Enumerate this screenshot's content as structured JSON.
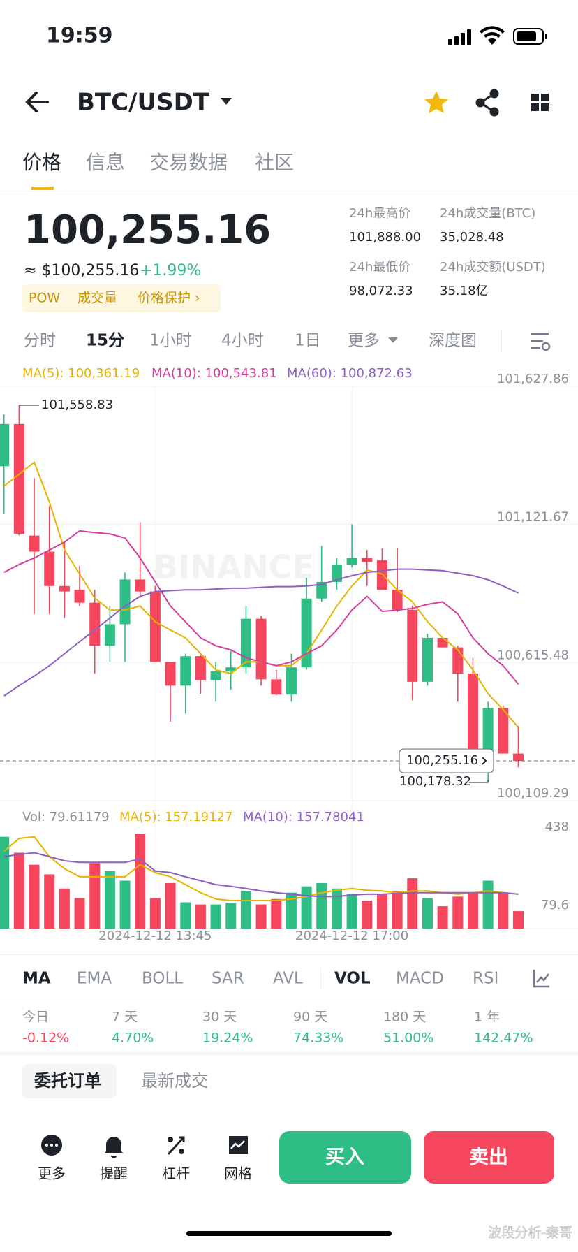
{
  "status": {
    "time": "19:59"
  },
  "header": {
    "pair": "BTC/USDT"
  },
  "tabs": [
    "价格",
    "信息",
    "交易数据",
    "社区"
  ],
  "price": {
    "last": "100,255.16",
    "usd": "≈ $100,255.16",
    "change": "+1.99%",
    "tags": [
      "POW",
      "成交量",
      "价格保护 ›"
    ]
  },
  "stats": [
    {
      "label": "24h最高价",
      "value": "101,888.00"
    },
    {
      "label": "24h成交量(BTC)",
      "value": "35,028.48"
    },
    {
      "label": "24h最低价",
      "value": "98,072.33"
    },
    {
      "label": "24h成交额(USDT)",
      "value": "35.18亿"
    }
  ],
  "timeframes": [
    "分时",
    "15分",
    "1小时",
    "4小时",
    "1日",
    "更多",
    "深度图"
  ],
  "chart_data": {
    "type": "candlestick",
    "watermark": "BINANCE",
    "categories": [
      null,
      null,
      null,
      null,
      null,
      null,
      null,
      null,
      null,
      null,
      "2024-12-12 13:45",
      null,
      null,
      null,
      null,
      null,
      null,
      null,
      null,
      null,
      null,
      null,
      null,
      "2024-12-12 17:00",
      null,
      null,
      null,
      null,
      null,
      null,
      null,
      null,
      null,
      null,
      null
    ],
    "up_color": "#2ebd85",
    "down_color": "#f6465d",
    "open": [
      101335,
      101490,
      101081,
      101022,
      100896,
      100882,
      100835,
      100677,
      100756,
      100920,
      100876,
      100618,
      100531,
      100639,
      100551,
      100583,
      100598,
      100776,
      100554,
      100498,
      100598,
      100850,
      100911,
      100975,
      100999,
      100990,
      100882,
      100809,
      100545,
      100706,
      100671,
      100575,
      100282,
      100449,
      100282
    ],
    "high": [
      101525,
      101558.83,
      101291,
      101189,
      101057,
      100970,
      100882,
      100823,
      100946,
      101130,
      100896,
      100618,
      100648,
      100648,
      100618,
      100662,
      100823,
      100788,
      100589,
      100648,
      100926,
      101043,
      100999,
      101122,
      101028,
      101034,
      101034,
      100823,
      100721,
      100706,
      100677,
      100633,
      100472,
      100458,
      100384
    ],
    "low": [
      101160,
      101081,
      100794,
      100794,
      100779,
      100823,
      100575,
      100618,
      100618,
      100853,
      100618,
      100399,
      100428,
      100501,
      100472,
      100516,
      100575,
      100531,
      100496,
      100472,
      100589,
      100838,
      100882,
      100964,
      100896,
      100882,
      100800,
      100478,
      100531,
      100671,
      100472,
      100273,
      100178.32,
      100282,
      100232
    ],
    "close": [
      101490,
      101087,
      101022,
      100896,
      100876,
      100835,
      100677,
      100756,
      100920,
      100876,
      100618,
      100531,
      100639,
      100551,
      100583,
      100598,
      100776,
      100554,
      100498,
      100598,
      100850,
      100911,
      100975,
      100999,
      100984,
      100882,
      100809,
      100545,
      100706,
      100671,
      100575,
      100282,
      100449,
      100282,
      100255.16
    ],
    "series": [
      {
        "name": "MA(5): 100,361.19",
        "color": "#e8b400",
        "values": [
          101262,
          101306,
          101350,
          101204,
          101028,
          100940,
          100852,
          100808,
          100808,
          100823,
          100765,
          100735,
          100706,
          100648,
          100589,
          100575,
          100618,
          100618,
          100604,
          100604,
          100648,
          100735,
          100823,
          100896,
          100955,
          100940,
          100882,
          100838,
          100765,
          100706,
          100662,
          100589,
          100501,
          100443,
          100378
        ]
      },
      {
        "name": "MA(10): 100,543.81",
        "color": "#d63d9e",
        "values": [
          100946,
          100975,
          100999,
          101028,
          101057,
          101098,
          101092,
          101087,
          101072,
          100999,
          100911,
          100823,
          100765,
          100706,
          100677,
          100662,
          100633,
          100618,
          100604,
          100618,
          100648,
          100677,
          100735,
          100808,
          100858,
          100803,
          100808,
          100814,
          100829,
          100838,
          100794,
          100706,
          100648,
          100604,
          100536
        ]
      },
      {
        "name": "MA(60): 100,872.63",
        "color": "#8e5fc2",
        "values": [
          100493,
          100531,
          100566,
          100604,
          100648,
          100692,
          100735,
          100779,
          100823,
          100858,
          100876,
          100879,
          100882,
          100882,
          100885,
          100888,
          100888,
          100891,
          100894,
          100894,
          100896,
          100902,
          100919,
          100934,
          100946,
          100952,
          100958,
          100958,
          100955,
          100952,
          100943,
          100934,
          100919,
          100896,
          100870
        ]
      }
    ],
    "ylim": [
      100109.29,
      101627.86
    ],
    "yticks": [
      {
        "value": 101627.86,
        "label": "101,627.86"
      },
      {
        "value": 101121.67,
        "label": "101,121.67"
      },
      {
        "value": 100615.48,
        "label": "100,615.48"
      },
      {
        "value": 100109.29,
        "label": "100,109.29"
      }
    ],
    "annotations": {
      "high": "101,558.83",
      "low": "100,178.32",
      "last": "100,255.16"
    },
    "volume": {
      "label": "Vol: 79.61179",
      "values": [
        420,
        347,
        292,
        248,
        183,
        139,
        299,
        263,
        219,
        434,
        139,
        208,
        120,
        110,
        110,
        117,
        172,
        110,
        135,
        164,
        193,
        208,
        183,
        157,
        128,
        157,
        172,
        230,
        139,
        102,
        146,
        164,
        219,
        164,
        79.61179
      ],
      "series": [
        {
          "name": "MA(5): 157.19127",
          "color": "#e8b400",
          "values": [
            354,
            412,
            420,
            329,
            274,
            237,
            237,
            237,
            237,
            292,
            256,
            237,
            201,
            164,
            135,
            128,
            128,
            128,
            128,
            135,
            146,
            164,
            175,
            183,
            175,
            172,
            164,
            172,
            172,
            164,
            157,
            164,
            172,
            164,
            157
          ]
        },
        {
          "name": "MA(10): 157.78041",
          "color": "#8e5fc2",
          "values": [
            329,
            339,
            347,
            329,
            310,
            303,
            303,
            303,
            303,
            318,
            263,
            256,
            237,
            219,
            201,
            193,
            183,
            172,
            164,
            157,
            150,
            146,
            146,
            153,
            157,
            157,
            161,
            164,
            164,
            164,
            164,
            164,
            164,
            164,
            157
          ]
        }
      ],
      "ylim": [
        0,
        438
      ],
      "yticks": [
        438,
        79.6
      ]
    }
  },
  "indicators": [
    "MA",
    "EMA",
    "BOLL",
    "SAR",
    "AVL",
    "VOL",
    "MACD",
    "RSI"
  ],
  "performance": [
    {
      "label": "今日",
      "value": "-0.12%"
    },
    {
      "label": "7 天",
      "value": "4.70%"
    },
    {
      "label": "30 天",
      "value": "19.24%"
    },
    {
      "label": "90 天",
      "value": "74.33%"
    },
    {
      "label": "180 天",
      "value": "51.00%"
    },
    {
      "label": "1 年",
      "value": "142.47%"
    }
  ],
  "order_tabs": [
    "委托订单",
    "最新成交"
  ],
  "bottom": {
    "tools": [
      "更多",
      "提醒",
      "杠杆",
      "网格"
    ],
    "buy": "买入",
    "sell": "卖出"
  },
  "watermark": "波段分析-秦哥"
}
